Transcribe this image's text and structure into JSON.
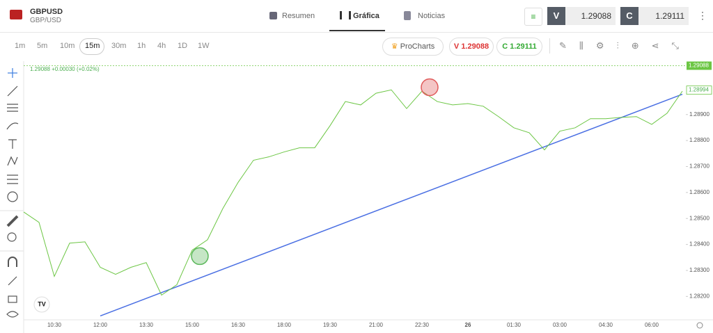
{
  "ui": {
    "symbol": "GBPUSD",
    "pair": "GBP/USD",
    "tabs": [
      "Resumen",
      "Gráfica",
      "Noticias"
    ],
    "sell_label": "V",
    "sell_price": "1.29088",
    "buy_label": "C",
    "buy_price": "1.29111",
    "timeframes": [
      "1m",
      "5m",
      "10m",
      "15m",
      "30m",
      "1h",
      "4h",
      "1D",
      "1W"
    ],
    "procharts": "ProCharts",
    "sell_button": "V 1.29088",
    "buy_button": "C 1.29111"
  },
  "chart_data": {
    "type": "line",
    "info": "1.29088 +0.00030 (+0.02%)",
    "categories": [
      null,
      null,
      "10:30",
      null,
      null,
      "12:00",
      null,
      null,
      "13:30",
      null,
      null,
      "15:00",
      null,
      null,
      "16:30",
      null,
      null,
      "18:00",
      null,
      null,
      "19:30",
      null,
      null,
      "21:00",
      null,
      null,
      "22:30",
      null,
      null,
      "26",
      null,
      null,
      "01:30",
      null,
      null,
      "03:00",
      null,
      null,
      "04:30",
      null,
      null,
      "06:00",
      null,
      null
    ],
    "values": [
      1.28525,
      1.28485,
      1.28277,
      1.28405,
      1.2841,
      1.28312,
      1.28285,
      1.28312,
      1.2833,
      1.28205,
      1.28245,
      1.28378,
      1.28418,
      1.28538,
      1.28639,
      1.28724,
      1.28737,
      1.28756,
      1.28772,
      1.28772,
      1.28857,
      1.2895,
      1.28937,
      1.28982,
      1.28995,
      1.28923,
      1.2899,
      1.2895,
      1.28937,
      1.28942,
      1.28932,
      1.28892,
      1.28849,
      1.2883,
      1.28764,
      1.28836,
      1.28849,
      1.28884,
      1.28884,
      1.28889,
      1.28892,
      1.28862,
      1.28905,
      1.2899
    ],
    "color": "#6cc644",
    "ylim": [
      1.2811,
      1.291
    ],
    "yticks": [
      {
        "value": 1.282,
        "label": "1.28200"
      },
      {
        "value": 1.283,
        "label": "1.28300"
      },
      {
        "value": 1.284,
        "label": "1.28400"
      },
      {
        "value": 1.285,
        "label": "1.28500"
      },
      {
        "value": 1.286,
        "label": "1.28600"
      },
      {
        "value": 1.287,
        "label": "1.28700"
      },
      {
        "value": 1.288,
        "label": "1.28800"
      },
      {
        "value": 1.289,
        "label": "1.28900"
      }
    ],
    "last_price": {
      "value": 1.29088,
      "label": "1.29088"
    },
    "close_price": {
      "value": 1.28994,
      "label": "1.28994"
    },
    "trendline": {
      "color": "#4a6fe3",
      "start": [
        5,
        1.28125
      ],
      "end": [
        43,
        1.28978
      ]
    },
    "markers": [
      {
        "index": 11.5,
        "value": 1.28355,
        "color": "#5cb85c"
      },
      {
        "index": 26.5,
        "value": 1.29005,
        "color": "#e05a5a"
      }
    ]
  }
}
